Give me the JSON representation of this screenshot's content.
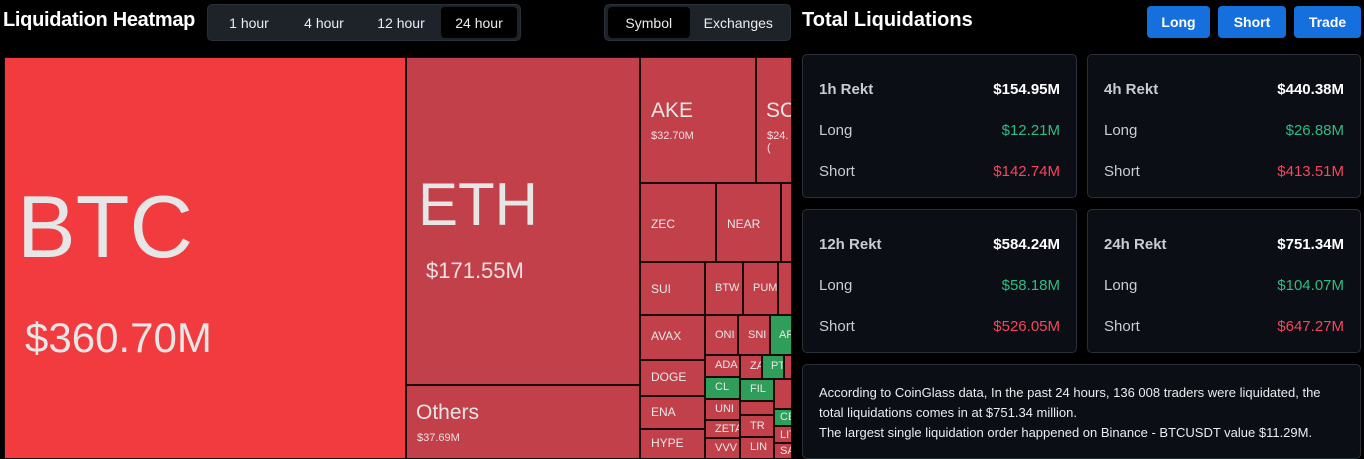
{
  "header": {
    "title": "Liquidation Heatmap",
    "time_tabs": [
      "1 hour",
      "4 hour",
      "12 hour",
      "24 hour"
    ],
    "active_time_tab": "24 hour",
    "view_tabs": [
      "Symbol",
      "Exchanges"
    ],
    "active_view_tab": "Symbol"
  },
  "heatmap": {
    "btc": {
      "symbol": "BTC",
      "value": "$360.70M"
    },
    "eth": {
      "symbol": "ETH",
      "value": "$171.55M"
    },
    "others": {
      "symbol": "Others",
      "value": "$37.69M"
    },
    "ake": {
      "symbol": "AKE",
      "value": "$32.70M"
    },
    "sol": {
      "symbol": "SO",
      "value": "$24.("
    },
    "zec": {
      "symbol": "ZEC"
    },
    "near": {
      "symbol": "NEAR"
    },
    "sui": {
      "symbol": "SUI"
    },
    "avax": {
      "symbol": "AVAX"
    },
    "doge": {
      "symbol": "DOGE"
    },
    "ena": {
      "symbol": "ENA"
    },
    "hype": {
      "symbol": "HYPE"
    },
    "btw": {
      "symbol": "BTW"
    },
    "pum": {
      "symbol": "PUM"
    },
    "onl": {
      "symbol": "ONI"
    },
    "snl": {
      "symbol": "SNI"
    },
    "ar": {
      "symbol": "AR"
    },
    "ada": {
      "symbol": "ADA"
    },
    "za": {
      "symbol": "ZA"
    },
    "pt": {
      "symbol": "PT"
    },
    "cl": {
      "symbol": "CL"
    },
    "fil": {
      "symbol": "FIL"
    },
    "uni": {
      "symbol": "UNI"
    },
    "ct": {
      "symbol": "CE"
    },
    "zeta": {
      "symbol": "ZETA"
    },
    "tr": {
      "symbol": "TR"
    },
    "lit": {
      "symbol": "LIT"
    },
    "vvv": {
      "symbol": "VVV"
    },
    "lin": {
      "symbol": "LIN"
    },
    "sa": {
      "symbol": "SA"
    }
  },
  "total": {
    "title": "Total Liquidations",
    "buttons": {
      "long": "Long",
      "short": "Short",
      "trade": "Trade"
    },
    "long_label": "Long",
    "short_label": "Short",
    "cards": [
      {
        "label": "1h Rekt",
        "total": "$154.95M",
        "long": "$12.21M",
        "short": "$142.74M"
      },
      {
        "label": "4h Rekt",
        "total": "$440.38M",
        "long": "$26.88M",
        "short": "$413.51M"
      },
      {
        "label": "12h Rekt",
        "total": "$584.24M",
        "long": "$58.18M",
        "short": "$526.05M"
      },
      {
        "label": "24h Rekt",
        "total": "$751.34M",
        "long": "$104.07M",
        "short": "$647.27M"
      }
    ],
    "info_line1": "According to CoinGlass data, In the past 24 hours, 136 008 traders were liquidated, the total liquidations comes in at $751.34 million.",
    "info_line2": "The largest single liquidation order happened on Binance - BTCUSDT value $11.29M."
  },
  "colors": {
    "bg": "#000000",
    "btc_cell": "#f23b3f",
    "eth_cell": "#c2404a",
    "long_green": "#2ebd85",
    "short_red": "#f6465d",
    "accent_button": "#1570dd"
  }
}
